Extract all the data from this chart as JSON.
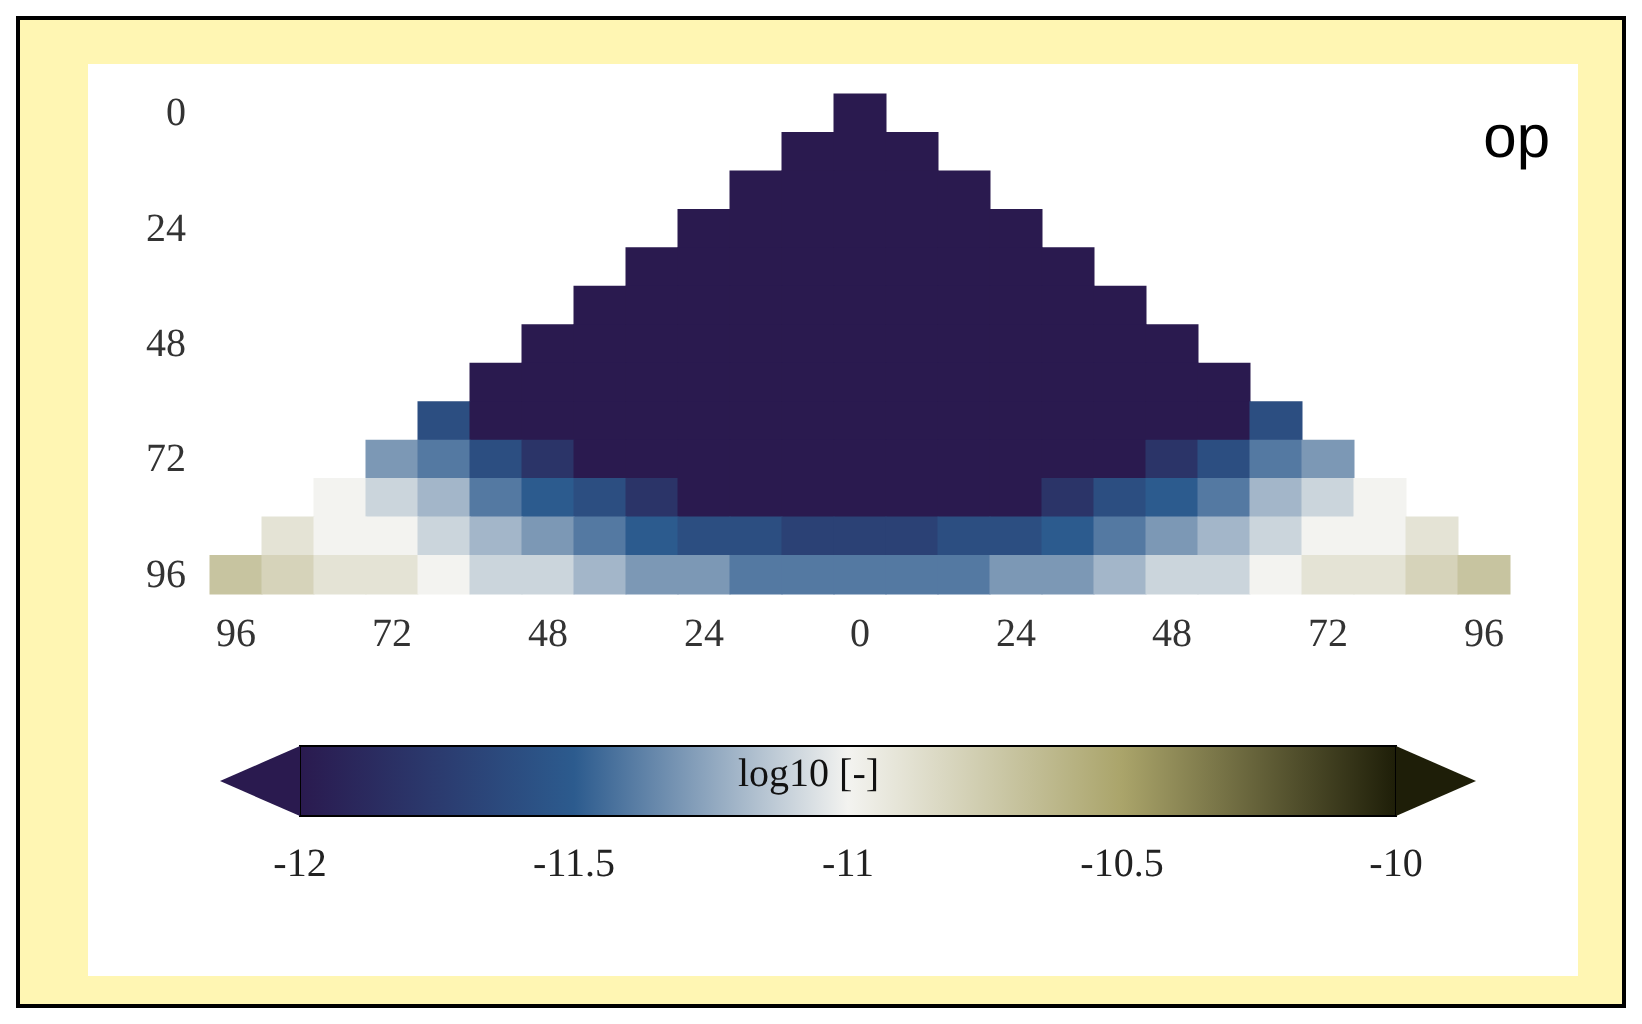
{
  "chart_data": {
    "type": "heatmap",
    "clabel": "log10 [-]",
    "annotations": [
      "op"
    ],
    "categories": [
      "96",
      null,
      null,
      "72",
      null,
      null,
      "48",
      null,
      null,
      "24",
      null,
      null,
      "0",
      null,
      null,
      "24",
      null,
      null,
      "48",
      null,
      null,
      "72",
      null,
      null,
      "96"
    ],
    "y_categories": [
      "0",
      null,
      null,
      "24",
      null,
      null,
      "48",
      null,
      null,
      "72",
      null,
      null,
      "96"
    ],
    "clim": [
      -12,
      -10
    ],
    "cticks": [
      -12,
      -11.5,
      -11,
      -10.5,
      -10
    ],
    "cells": [
      [
        null,
        null,
        null,
        null,
        null,
        null,
        null,
        null,
        null,
        null,
        null,
        null,
        -12,
        null,
        null,
        null,
        null,
        null,
        null,
        null,
        null,
        null,
        null,
        null,
        null
      ],
      [
        null,
        null,
        null,
        null,
        null,
        null,
        null,
        null,
        null,
        null,
        null,
        -12,
        -12,
        -12,
        null,
        null,
        null,
        null,
        null,
        null,
        null,
        null,
        null,
        null,
        null
      ],
      [
        null,
        null,
        null,
        null,
        null,
        null,
        null,
        null,
        null,
        null,
        -12,
        -12,
        -12,
        -12,
        -12,
        null,
        null,
        null,
        null,
        null,
        null,
        null,
        null,
        null,
        null
      ],
      [
        null,
        null,
        null,
        null,
        null,
        null,
        null,
        null,
        null,
        -12,
        -12,
        -12,
        -12,
        -12,
        -12,
        -12,
        null,
        null,
        null,
        null,
        null,
        null,
        null,
        null,
        null
      ],
      [
        null,
        null,
        null,
        null,
        null,
        null,
        null,
        null,
        -12,
        -12,
        -12,
        -12,
        -12,
        -12,
        -12,
        -12,
        -12,
        null,
        null,
        null,
        null,
        null,
        null,
        null,
        null
      ],
      [
        null,
        null,
        null,
        null,
        null,
        null,
        null,
        -12,
        -12,
        -12,
        -12,
        -12,
        -12,
        -12,
        -12,
        -12,
        -12,
        -12,
        null,
        null,
        null,
        null,
        null,
        null,
        null
      ],
      [
        null,
        null,
        null,
        null,
        null,
        null,
        -12,
        -12,
        -12,
        -12,
        -12,
        -12,
        -12,
        -12,
        -12,
        -12,
        -12,
        -12,
        -12,
        null,
        null,
        null,
        null,
        null,
        null
      ],
      [
        null,
        null,
        null,
        null,
        null,
        -12,
        -12,
        -12,
        -12,
        -12,
        -12,
        -12,
        -12,
        -12,
        -12,
        -12,
        -12,
        -12,
        -12,
        -12,
        null,
        null,
        null,
        null,
        null
      ],
      [
        null,
        null,
        null,
        null,
        -11.6,
        -12,
        -12,
        -12,
        -12,
        -12,
        -12,
        -12,
        -12,
        -12,
        -12,
        -12,
        -12,
        -12,
        -12,
        -12,
        -11.6,
        null,
        null,
        null,
        null
      ],
      [
        null,
        null,
        null,
        -11.3,
        -11.4,
        -11.6,
        -11.8,
        -12,
        -12,
        -12,
        -12,
        -12,
        -12,
        -12,
        -12,
        -12,
        -12,
        -12,
        -11.8,
        -11.6,
        -11.4,
        -11.3,
        null,
        null,
        null
      ],
      [
        null,
        null,
        -11.0,
        -11.1,
        -11.2,
        -11.4,
        -11.5,
        -11.6,
        -11.8,
        -12,
        -12,
        -12,
        -12,
        -12,
        -12,
        -12,
        -11.8,
        -11.6,
        -11.5,
        -11.4,
        -11.2,
        -11.1,
        -11.0,
        null,
        null
      ],
      [
        null,
        -10.9,
        -11.0,
        -11.0,
        -11.1,
        -11.2,
        -11.3,
        -11.4,
        -11.5,
        -11.6,
        -11.6,
        -11.7,
        -11.7,
        -11.7,
        -11.6,
        -11.6,
        -11.5,
        -11.4,
        -11.3,
        -11.2,
        -11.1,
        -11.0,
        -11.0,
        -10.9,
        null
      ],
      [
        -10.7,
        -10.8,
        -10.9,
        -10.9,
        -11.0,
        -11.1,
        -11.1,
        -11.2,
        -11.3,
        -11.3,
        -11.4,
        -11.4,
        -11.4,
        -11.4,
        -11.4,
        -11.3,
        -11.3,
        -11.2,
        -11.1,
        -11.1,
        -11.0,
        -10.9,
        -10.9,
        -10.8,
        -10.7
      ]
    ]
  }
}
